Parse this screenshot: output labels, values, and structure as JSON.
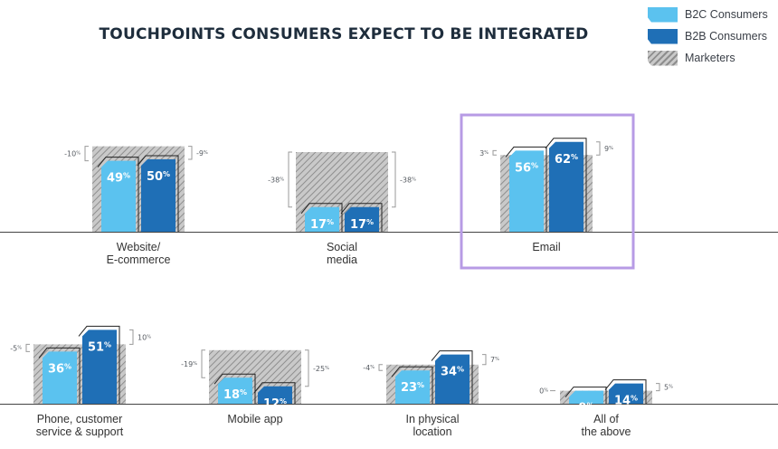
{
  "colors": {
    "b2c": "#5bc2ef",
    "b2b": "#1f6fb6",
    "marketers_bg": "#c9c9c9",
    "marketers_hatch": "#8e8e8e",
    "highlight": "#b79be5",
    "axis": "#444444"
  },
  "legend": [
    {
      "label": "B2C Consumers",
      "key": "b2c"
    },
    {
      "label": "B2B Consumers",
      "key": "b2b"
    },
    {
      "label": "Marketers",
      "key": "marketers"
    }
  ],
  "chart_data": {
    "type": "bar",
    "title": "TOUCHPOINTS CONSUMERS EXPECT TO BE INTEGRATED",
    "series_order": [
      "B2C Consumers",
      "B2B Consumers",
      "Marketers"
    ],
    "ylim": [
      0,
      100
    ],
    "highlighted_category": "Email",
    "categories": [
      {
        "label": [
          "Website/",
          "E-commerce"
        ],
        "b2c": 49,
        "b2b": 50,
        "marketers": 59,
        "b2c_diff": "-10",
        "b2b_diff": "-9"
      },
      {
        "label": [
          "Social",
          "media"
        ],
        "b2c": 17,
        "b2b": 17,
        "marketers": 55,
        "b2c_diff": "-38",
        "b2b_diff": "-38"
      },
      {
        "label": [
          "Email"
        ],
        "b2c": 56,
        "b2b": 62,
        "marketers": 53,
        "b2c_diff": "3",
        "b2b_diff": "9"
      },
      {
        "label": [
          "Phone, customer",
          "service & support"
        ],
        "b2c": 36,
        "b2b": 51,
        "marketers": 41,
        "b2c_diff": "-5",
        "b2b_diff": "10"
      },
      {
        "label": [
          "Mobile app"
        ],
        "b2c": 18,
        "b2b": 12,
        "marketers": 37,
        "b2c_diff": "-19",
        "b2b_diff": "-25"
      },
      {
        "label": [
          "In physical",
          "location"
        ],
        "b2c": 23,
        "b2b": 34,
        "marketers": 27,
        "b2c_diff": "-4",
        "b2b_diff": "7"
      },
      {
        "label": [
          "All of",
          "the above"
        ],
        "b2c": 9,
        "b2b": 14,
        "marketers": 9,
        "b2c_diff": "0",
        "b2b_diff": "5"
      }
    ]
  }
}
